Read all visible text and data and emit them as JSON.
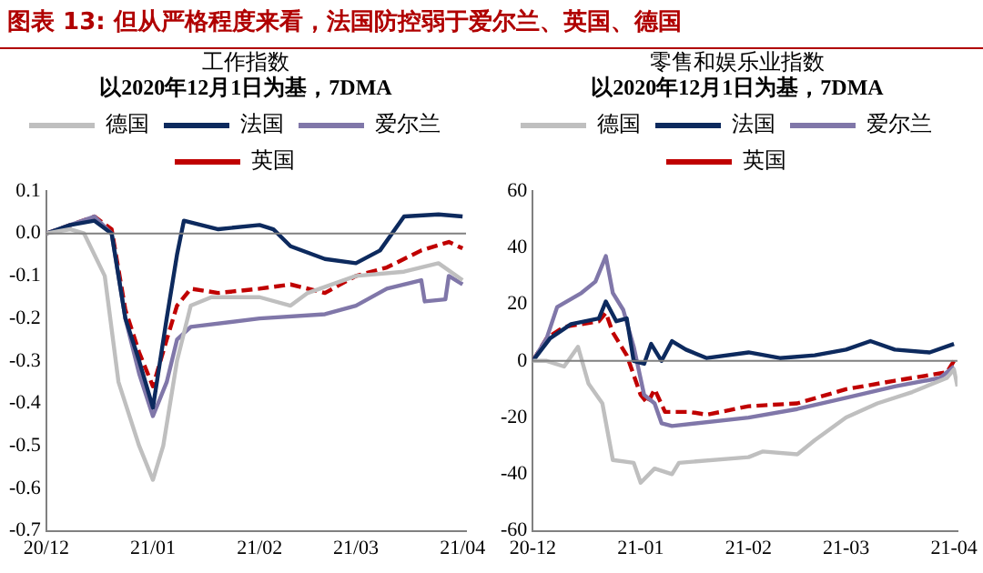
{
  "chart_data": [
    {
      "type": "line",
      "title": "工作指数",
      "subtitle": "以2020年12月1日为基，7DMA",
      "annotations": [
        "图表 13: 但从严格程度来看，法国防控弱于爱尔兰、英国、德国"
      ],
      "xlim": [
        "2020-12-01",
        "2021-04-02"
      ],
      "xticks": [
        {
          "value": "2020-12-01",
          "label": "20/12"
        },
        {
          "value": "2021-01-01",
          "label": "21/01"
        },
        {
          "value": "2021-02-01",
          "label": "21/02"
        },
        {
          "value": "2021-03-01",
          "label": "21/03"
        },
        {
          "value": "2021-04-01",
          "label": "21/04"
        }
      ],
      "ylim": [
        -0.7,
        0.1
      ],
      "yticks": [
        {
          "value": -0.7,
          "label": "-0.7"
        },
        {
          "value": -0.6,
          "label": "-0.6"
        },
        {
          "value": -0.5,
          "label": "-0.5"
        },
        {
          "value": -0.4,
          "label": "-0.4"
        },
        {
          "value": -0.3,
          "label": "-0.3"
        },
        {
          "value": -0.2,
          "label": "-0.2"
        },
        {
          "value": -0.1,
          "label": "-0.1"
        },
        {
          "value": 0,
          "label": "0.0"
        },
        {
          "value": 0.1,
          "label": "0.1"
        }
      ],
      "grid": false,
      "legend": "top",
      "marker": "none",
      "ref_lines": [
        {
          "axis": "y",
          "value": 0,
          "color": "#808080"
        }
      ],
      "series": [
        {
          "name": "德国",
          "color": "#bfbfbf",
          "line_style": "solid",
          "x": [
            "2020-12-01",
            "2020-12-08",
            "2020-12-12",
            "2020-12-18",
            "2020-12-22",
            "2020-12-28",
            "2021-01-01",
            "2021-01-04",
            "2021-01-08",
            "2021-01-12",
            "2021-01-18",
            "2021-02-01",
            "2021-02-10",
            "2021-02-15",
            "2021-03-01",
            "2021-03-15",
            "2021-03-25",
            "2021-04-01"
          ],
          "values": [
            0,
            0.01,
            0,
            -0.1,
            -0.35,
            -0.5,
            -0.58,
            -0.5,
            -0.3,
            -0.17,
            -0.15,
            -0.15,
            -0.17,
            -0.14,
            -0.1,
            -0.09,
            -0.07,
            -0.11
          ]
        },
        {
          "name": "法国",
          "color": "#0d2a5e",
          "line_style": "solid",
          "x": [
            "2020-12-01",
            "2020-12-08",
            "2020-12-15",
            "2020-12-20",
            "2020-12-24",
            "2020-12-28",
            "2021-01-01",
            "2021-01-05",
            "2021-01-08",
            "2021-01-10",
            "2021-01-15",
            "2021-01-20",
            "2021-02-01",
            "2021-02-05",
            "2021-02-10",
            "2021-02-20",
            "2021-03-01",
            "2021-03-08",
            "2021-03-15",
            "2021-03-25",
            "2021-04-01"
          ],
          "values": [
            0,
            0.02,
            0.03,
            0,
            -0.2,
            -0.3,
            -0.41,
            -0.2,
            -0.05,
            0.03,
            0.02,
            0.01,
            0.02,
            0.01,
            -0.03,
            -0.06,
            -0.07,
            -0.04,
            0.04,
            0.045,
            0.04
          ]
        },
        {
          "name": "爱尔兰",
          "color": "#8077a9",
          "line_style": "solid",
          "x": [
            "2020-12-01",
            "2020-12-08",
            "2020-12-15",
            "2020-12-20",
            "2020-12-24",
            "2020-12-28",
            "2021-01-01",
            "2021-01-05",
            "2021-01-08",
            "2021-01-12",
            "2021-02-01",
            "2021-02-20",
            "2021-03-01",
            "2021-03-10",
            "2021-03-20",
            "2021-03-21",
            "2021-03-27",
            "2021-03-28",
            "2021-04-01"
          ],
          "values": [
            0,
            0.02,
            0.04,
            0,
            -0.2,
            -0.33,
            -0.43,
            -0.35,
            -0.25,
            -0.22,
            -0.2,
            -0.19,
            -0.17,
            -0.13,
            -0.11,
            -0.16,
            -0.155,
            -0.1,
            -0.12
          ]
        },
        {
          "name": "英国",
          "color": "#c00000",
          "line_style": "dashed",
          "x": [
            "2020-12-01",
            "2020-12-08",
            "2020-12-15",
            "2020-12-20",
            "2020-12-24",
            "2020-12-28",
            "2021-01-01",
            "2021-01-05",
            "2021-01-08",
            "2021-01-12",
            "2021-01-20",
            "2021-02-01",
            "2021-02-10",
            "2021-02-20",
            "2021-03-01",
            "2021-03-10",
            "2021-03-20",
            "2021-03-28",
            "2021-04-01"
          ],
          "values": [
            0,
            0.02,
            0.04,
            0.01,
            -0.18,
            -0.28,
            -0.36,
            -0.25,
            -0.17,
            -0.13,
            -0.14,
            -0.13,
            -0.12,
            -0.14,
            -0.1,
            -0.08,
            -0.04,
            -0.02,
            -0.035
          ]
        }
      ]
    },
    {
      "type": "line",
      "title": "零售和娱乐业指数",
      "subtitle": "以2020年12月1日为基，7DMA",
      "xlim": [
        "2020-12-01",
        "2021-04-02"
      ],
      "xticks": [
        {
          "value": "2020-12-01",
          "label": "20-12"
        },
        {
          "value": "2021-01-01",
          "label": "21-01"
        },
        {
          "value": "2021-02-01",
          "label": "21-02"
        },
        {
          "value": "2021-03-01",
          "label": "21-03"
        },
        {
          "value": "2021-04-01",
          "label": "21-04"
        }
      ],
      "ylim": [
        -60,
        60
      ],
      "yticks": [
        -60,
        -40,
        -20,
        0,
        20,
        40,
        60
      ],
      "grid": false,
      "legend": "top",
      "marker": "none",
      "ref_lines": [
        {
          "axis": "y",
          "value": 0,
          "color": "#808080"
        }
      ],
      "series": [
        {
          "name": "德国",
          "color": "#bfbfbf",
          "line_style": "solid",
          "x": [
            "2020-12-01",
            "2020-12-05",
            "2020-12-10",
            "2020-12-14",
            "2020-12-17",
            "2020-12-21",
            "2020-12-24",
            "2020-12-30",
            "2021-01-01",
            "2021-01-05",
            "2021-01-10",
            "2021-01-12",
            "2021-02-01",
            "2021-02-05",
            "2021-02-15",
            "2021-02-20",
            "2021-03-01",
            "2021-03-10",
            "2021-03-20",
            "2021-03-30",
            "2021-04-01",
            "2021-04-02"
          ],
          "values": [
            0,
            0,
            -2,
            5,
            -8,
            -15,
            -35,
            -36,
            -43,
            -38,
            -40,
            -36,
            -34,
            -32,
            -33,
            -28,
            -20,
            -15,
            -11,
            -6,
            -3,
            -9
          ]
        },
        {
          "name": "法国",
          "color": "#0d2a5e",
          "line_style": "solid",
          "x": [
            "2020-12-01",
            "2020-12-06",
            "2020-12-12",
            "2020-12-20",
            "2020-12-22",
            "2020-12-25",
            "2020-12-28",
            "2020-12-30",
            "2021-01-02",
            "2021-01-04",
            "2021-01-07",
            "2021-01-10",
            "2021-01-14",
            "2021-01-20",
            "2021-02-01",
            "2021-02-10",
            "2021-02-20",
            "2021-03-01",
            "2021-03-08",
            "2021-03-15",
            "2021-03-25",
            "2021-04-01"
          ],
          "values": [
            0,
            8,
            13,
            15,
            21,
            14,
            15,
            0,
            -1,
            6,
            0,
            7,
            4,
            1,
            3,
            1,
            2,
            4,
            7,
            4,
            3,
            6
          ]
        },
        {
          "name": "爱尔兰",
          "color": "#8077a9",
          "line_style": "solid",
          "x": [
            "2020-12-01",
            "2020-12-05",
            "2020-12-08",
            "2020-12-15",
            "2020-12-19",
            "2020-12-22",
            "2020-12-24",
            "2020-12-27",
            "2020-12-30",
            "2021-01-02",
            "2021-01-05",
            "2021-01-07",
            "2021-01-10",
            "2021-02-01",
            "2021-02-15",
            "2021-03-01",
            "2021-03-15",
            "2021-03-28",
            "2021-04-01"
          ],
          "values": [
            0,
            8,
            19,
            24,
            28,
            37,
            24,
            18,
            5,
            -12,
            -15,
            -22,
            -23,
            -20,
            -17,
            -13,
            -9,
            -6,
            -2
          ]
        },
        {
          "name": "英国",
          "color": "#c00000",
          "line_style": "dashed",
          "x": [
            "2020-12-01",
            "2020-12-05",
            "2020-12-10",
            "2020-12-20",
            "2020-12-22",
            "2020-12-24",
            "2020-12-28",
            "2021-01-01",
            "2021-01-03",
            "2021-01-05",
            "2021-01-08",
            "2021-01-15",
            "2021-01-20",
            "2021-02-01",
            "2021-02-15",
            "2021-03-01",
            "2021-03-15",
            "2021-03-30",
            "2021-04-01"
          ],
          "values": [
            0,
            8,
            12,
            14,
            17,
            10,
            2,
            -12,
            -15,
            -10,
            -18,
            -18,
            -19,
            -16,
            -15,
            -10,
            -7,
            -4,
            0
          ]
        }
      ]
    }
  ]
}
